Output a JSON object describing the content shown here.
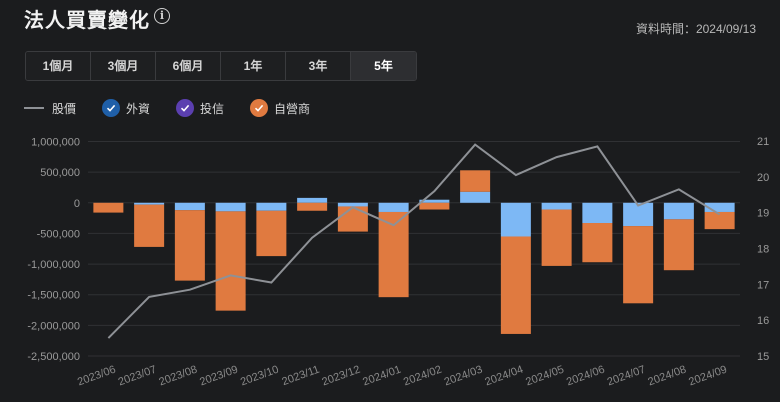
{
  "header": {
    "title": "法人買賣變化",
    "info_icon": "info-icon",
    "timestamp": "資料時間：2024/09/13"
  },
  "tabs": [
    {
      "label": "1個月",
      "active": false
    },
    {
      "label": "3個月",
      "active": false
    },
    {
      "label": "6個月",
      "active": false
    },
    {
      "label": "1年",
      "active": false
    },
    {
      "label": "3年",
      "active": false
    },
    {
      "label": "5年",
      "active": true
    }
  ],
  "legend": [
    {
      "label": "股價",
      "kind": "line",
      "color": "#8e9196"
    },
    {
      "label": "外資",
      "kind": "check",
      "color": "#1f5fa8"
    },
    {
      "label": "投信",
      "kind": "check",
      "color": "#5b3fb0"
    },
    {
      "label": "自營商",
      "kind": "check",
      "color": "#e07a40"
    }
  ],
  "chart_data": {
    "type": "bar",
    "stacked": true,
    "categories": [
      "2023/06",
      "2023/07",
      "2023/08",
      "2023/09",
      "2023/10",
      "2023/11",
      "2023/12",
      "2024/01",
      "2024/02",
      "2024/03",
      "2024/04",
      "2024/05",
      "2024/06",
      "2024/07",
      "2024/08",
      "2024/09"
    ],
    "series": [
      {
        "name": "外資",
        "color": "#7db8f5",
        "values": [
          0,
          -30000,
          -120000,
          -140000,
          -130000,
          80000,
          -60000,
          -150000,
          50000,
          180000,
          -550000,
          -110000,
          -330000,
          -380000,
          -270000,
          -150000
        ]
      },
      {
        "name": "投信",
        "color": "#5b3fb0",
        "values": [
          0,
          0,
          0,
          0,
          0,
          0,
          0,
          0,
          0,
          0,
          0,
          0,
          0,
          0,
          0,
          0
        ]
      },
      {
        "name": "自營商",
        "color": "#e07a40",
        "values": [
          -160000,
          -690000,
          -1150000,
          -1620000,
          -740000,
          -130000,
          -410000,
          -1390000,
          -110000,
          350000,
          -1590000,
          -920000,
          -640000,
          -1260000,
          -830000,
          -280000
        ]
      }
    ],
    "price": {
      "name": "股價",
      "color": "#8e9196",
      "values": [
        15.5,
        16.65,
        16.85,
        17.25,
        17.05,
        18.3,
        19.15,
        18.65,
        19.6,
        20.9,
        20.05,
        20.55,
        20.85,
        19.2,
        19.65,
        18.95
      ]
    },
    "y_left": {
      "ticks": [
        "1,000,000",
        "500,000",
        "0",
        "-500,000",
        "-1,000,000",
        "-1,500,000",
        "-2,000,000",
        "-2,500,000"
      ],
      "min": -2500000,
      "max": 1000000
    },
    "y_right": {
      "ticks": [
        "21",
        "20",
        "19",
        "18",
        "17",
        "16",
        "15"
      ],
      "min": 15,
      "max": 21
    },
    "grid": true,
    "legend_position": "top-left"
  }
}
